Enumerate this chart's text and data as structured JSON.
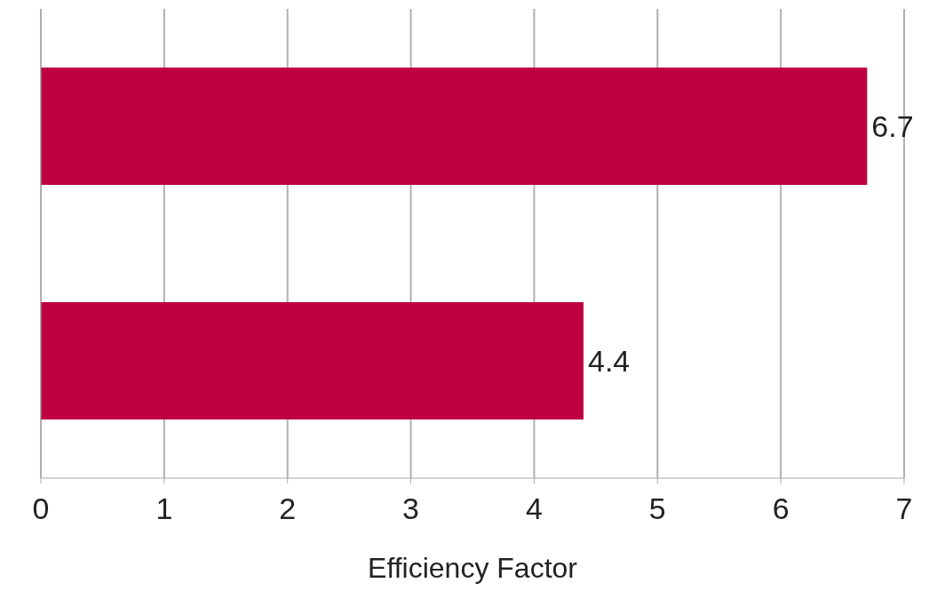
{
  "chart_data": {
    "type": "bar",
    "orientation": "horizontal",
    "categories": [
      null,
      null
    ],
    "values": [
      6.7,
      4.4
    ],
    "color": "#be0040",
    "xlabel": "Efficiency Factor",
    "xlim": [
      0,
      7
    ],
    "xticks": [
      0,
      1,
      2,
      3,
      4,
      5,
      6,
      7
    ],
    "grid": "x",
    "data_labels": true
  }
}
